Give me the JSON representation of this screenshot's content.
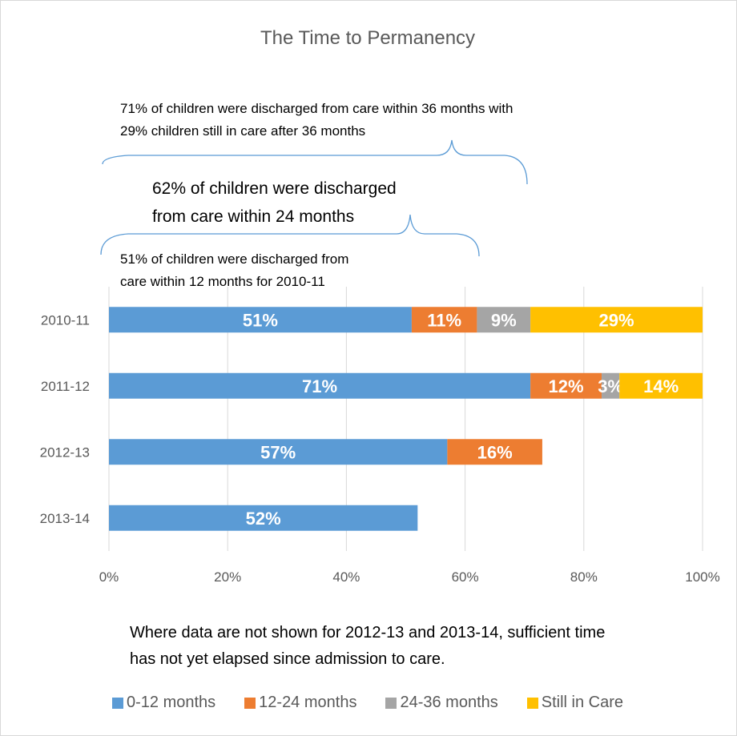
{
  "chart_data": {
    "type": "bar",
    "orientation": "horizontal-stacked",
    "title": "The Time to Permanency",
    "categories": [
      "2010-11",
      "2011-12",
      "2012-13",
      "2013-14"
    ],
    "series": [
      {
        "name": "0-12 months",
        "color": "#5b9bd5",
        "values": [
          51,
          71,
          57,
          52
        ],
        "labels": [
          "51%",
          "71%",
          "57%",
          "52%"
        ]
      },
      {
        "name": "12-24 months",
        "color": "#ed7d31",
        "values": [
          11,
          12,
          16,
          null
        ],
        "labels": [
          "11%",
          "12%",
          "16%",
          ""
        ]
      },
      {
        "name": "24-36 months",
        "color": "#a5a5a5",
        "values": [
          9,
          3,
          null,
          null
        ],
        "labels": [
          "9%",
          "3%",
          "",
          ""
        ]
      },
      {
        "name": "Still in Care",
        "color": "#ffc000",
        "values": [
          29,
          14,
          null,
          null
        ],
        "labels": [
          "29%",
          "14%",
          "",
          ""
        ]
      }
    ],
    "x_ticks": [
      "0%",
      "20%",
      "40%",
      "60%",
      "80%",
      "100%"
    ],
    "xlim": [
      0,
      100
    ],
    "grid": true,
    "legend_position": "bottom"
  },
  "annotations": {
    "a36_line1": "71% of children were discharged from care within 36 months with",
    "a36_line2": "29% children still in care after 36 months",
    "a24_line1": "62% of children were discharged",
    "a24_line2": "from care within 24 months",
    "a12_line1": "51% of children were discharged from",
    "a12_line2": "care within 12 months for 2010-11"
  },
  "note": {
    "line1": "Where data are not shown for 2012-13 and 2013-14, sufficient time",
    "line2": "has not yet elapsed since admission to care."
  }
}
